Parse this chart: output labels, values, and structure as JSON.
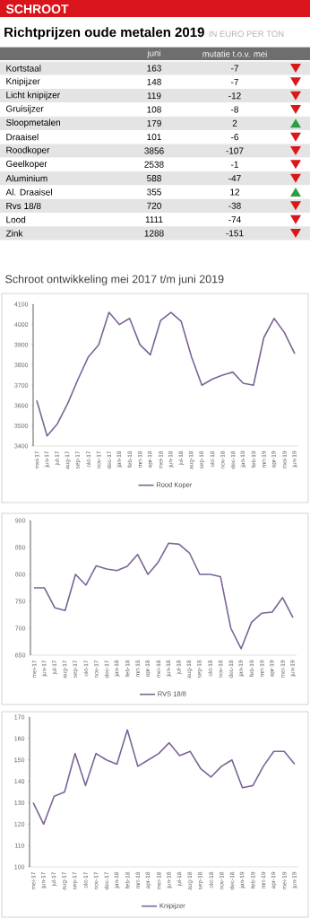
{
  "chart_data": [
    {
      "type": "other",
      "title": "Richtprijzen oude metalen 2019",
      "subtitle": "IN EURO PER TON",
      "annotations": [
        "SCHROOT"
      ],
      "categories": [
        "Kortstaal",
        "Knipijzer",
        "Licht knipijzer",
        "Gruisijzer",
        "Sloopmetalen",
        "Draaisel",
        "Roodkoper",
        "Geelkoper",
        "Aluminium",
        "Al. Draaisel",
        "Rvs 18/8",
        "Lood",
        "Zink"
      ],
      "series": [
        {
          "name": "juni",
          "values": [
            163,
            148,
            119,
            108,
            179,
            101,
            3856,
            2538,
            588,
            355,
            720,
            1111,
            1288
          ]
        },
        {
          "name": "mutatie t.o.v. mei",
          "values": [
            -7,
            -7,
            -12,
            -8,
            2,
            -6,
            -107,
            -1,
            -47,
            12,
            -38,
            -74,
            -151
          ],
          "colors": [
            "#d7191c",
            "#d7191c",
            "#d7191c",
            "#d7191c",
            "#2e9e44",
            "#d7191c",
            "#d7191c",
            "#d7191c",
            "#d7191c",
            "#2e9e44",
            "#d7191c",
            "#d7191c",
            "#d7191c"
          ]
        }
      ],
      "data_labels": true
    },
    {
      "type": "line",
      "title": "Schroot ontwikkeling mei 2017 t/m juni 2019",
      "categories": [
        "mei-17",
        "jun-17",
        "jul-17",
        "aug-17",
        "sep-17",
        "okt-17",
        "nov-17",
        "dec-17",
        "jan-18",
        "feb-18",
        "mrt-18",
        "apr-18",
        "mei-18",
        "jun-18",
        "jul-18",
        "aug-18",
        "sep-18",
        "okt-18",
        "nov-18",
        "dec-18",
        "jan-19",
        "feb-19",
        "mrt-19",
        "apr-19",
        "mei-19",
        "jun-19"
      ],
      "series": [
        {
          "name": "Rood Koper",
          "color": "#7b6496",
          "values": [
            3625,
            3450,
            3510,
            3610,
            3730,
            3840,
            3900,
            4060,
            4000,
            4030,
            3900,
            3850,
            4020,
            4060,
            4015,
            3840,
            3700,
            3730,
            3750,
            3765,
            3710,
            3700,
            3935,
            4030,
            3960,
            3856
          ]
        }
      ],
      "ylim": [
        3400,
        4100
      ],
      "yticks": [
        3400,
        3500,
        3600,
        3700,
        3800,
        3900,
        4000,
        4100
      ],
      "legend": "bottom"
    },
    {
      "type": "line",
      "categories": [
        "mei-17",
        "jun-17",
        "jul-17",
        "aug-17",
        "sep-17",
        "okt-17",
        "nov-17",
        "dec-17",
        "jan-18",
        "feb-18",
        "mrt-18",
        "apr-18",
        "mei-18",
        "jun-18",
        "jul-18",
        "aug-18",
        "sep-18",
        "okt-18",
        "nov-18",
        "dec-18",
        "jan-19",
        "feb-19",
        "mrt-19",
        "apr-19",
        "mei-19",
        "jun-19"
      ],
      "series": [
        {
          "name": "RVS 18/8",
          "color": "#7b6496",
          "values": [
            775,
            775,
            738,
            733,
            800,
            780,
            816,
            810,
            807,
            815,
            837,
            800,
            823,
            858,
            856,
            840,
            800,
            800,
            796,
            700,
            662,
            711,
            728,
            730,
            757,
            720
          ]
        }
      ],
      "ylim": [
        650,
        900
      ],
      "yticks": [
        650,
        700,
        750,
        800,
        850,
        900
      ],
      "legend": "bottom"
    },
    {
      "type": "line",
      "categories": [
        "mei-17",
        "jun-17",
        "jul-17",
        "aug-17",
        "sep-17",
        "okt-17",
        "nov-17",
        "dec-17",
        "jan-18",
        "feb-18",
        "mrt-18",
        "apr-18",
        "mei-18",
        "jun-18",
        "jul-18",
        "aug-18",
        "sep-18",
        "okt-18",
        "nov-18",
        "dec-18",
        "jan-19",
        "feb-19",
        "mrt-19",
        "apr-19",
        "mei-19",
        "jun-19"
      ],
      "series": [
        {
          "name": "Knipijzer",
          "color": "#7b6496",
          "values": [
            130,
            120,
            133,
            135,
            153,
            138,
            153,
            150,
            148,
            164,
            147,
            150,
            153,
            158,
            152,
            154,
            146,
            142,
            147,
            150,
            137,
            138,
            147,
            154,
            154,
            148
          ]
        }
      ],
      "ylim": [
        100,
        170
      ],
      "yticks": [
        100,
        110,
        120,
        130,
        140,
        150,
        160,
        170
      ],
      "legend": "bottom"
    }
  ]
}
